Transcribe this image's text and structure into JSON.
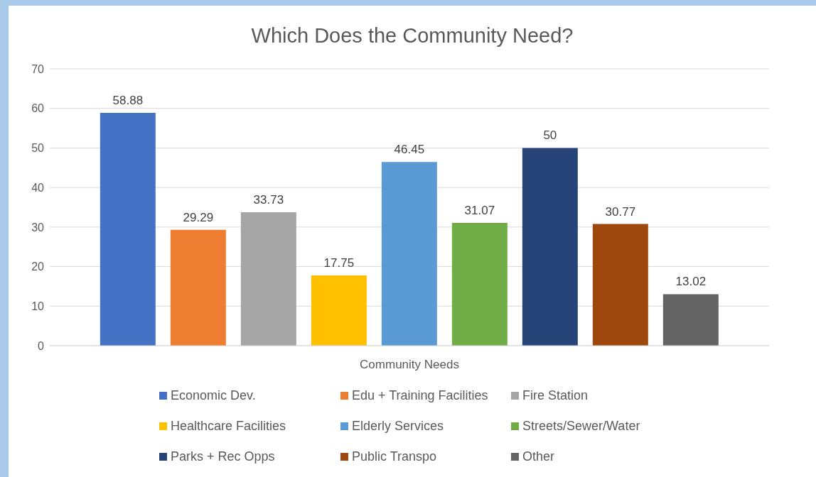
{
  "chart_data": {
    "type": "bar",
    "title": "Which Does the Community Need?",
    "categories": [
      "Community Needs"
    ],
    "series": [
      {
        "name": "Economic Dev.",
        "color": "#4472c4",
        "values": [
          58.88
        ]
      },
      {
        "name": "Edu + Training Facilities",
        "color": "#ed7d31",
        "values": [
          29.29
        ]
      },
      {
        "name": "Fire Station",
        "color": "#a5a5a5",
        "values": [
          33.73
        ]
      },
      {
        "name": "Healthcare Facilities",
        "color": "#ffc000",
        "values": [
          17.75
        ]
      },
      {
        "name": "Elderly Services",
        "color": "#5b9bd5",
        "values": [
          46.45
        ]
      },
      {
        "name": "Streets/Sewer/Water",
        "color": "#70ad47",
        "values": [
          31.07
        ]
      },
      {
        "name": "Parks + Rec Opps",
        "color": "#264478",
        "values": [
          50
        ]
      },
      {
        "name": "Public Transpo",
        "color": "#9e480e",
        "values": [
          30.77
        ]
      },
      {
        "name": "Other",
        "color": "#636363",
        "values": [
          13.02
        ]
      }
    ],
    "ylim": [
      0,
      70
    ],
    "yticks": [
      0,
      10,
      20,
      30,
      40,
      50,
      60,
      70
    ],
    "grid": "y",
    "legend": "bottom",
    "data_labels": true
  }
}
